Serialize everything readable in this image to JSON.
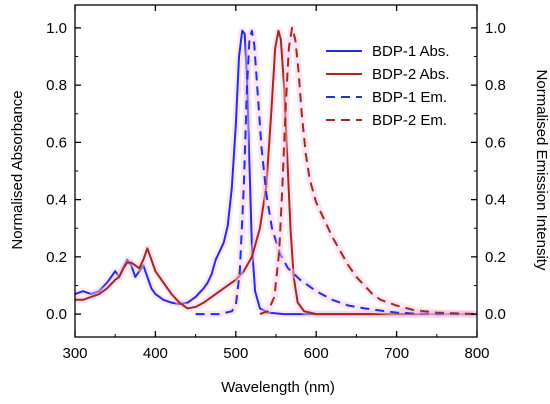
{
  "chart_data": {
    "type": "line",
    "xlabel": "Wavelength (nm)",
    "ylabel": "Normalised Absorbance",
    "y2label": "Normalised Emission Intensity",
    "xlim": [
      300,
      800
    ],
    "ylim": [
      -0.08,
      1.08
    ],
    "x_ticks": [
      300,
      400,
      500,
      600,
      700,
      800
    ],
    "x_tick_labels": [
      "300",
      "400",
      "500",
      "600",
      "700",
      "800"
    ],
    "y_ticks": [
      0.0,
      0.2,
      0.4,
      0.6,
      0.8,
      1.0
    ],
    "y_tick_labels": [
      "0.0",
      "0.2",
      "0.4",
      "0.6",
      "0.8",
      "1.0"
    ],
    "y2_ticks": [
      0.0,
      0.2,
      0.4,
      0.6,
      0.8,
      1.0
    ],
    "y2_tick_labels": [
      "0.0",
      "0.2",
      "0.4",
      "0.6",
      "0.8",
      "1.0"
    ],
    "legend_position": "top-right",
    "grid": false,
    "series": [
      {
        "name": "BDP-1 Abs.",
        "color": "#2230d8",
        "dash": "solid",
        "axis": "left",
        "points": [
          [
            300,
            0.07
          ],
          [
            310,
            0.08
          ],
          [
            320,
            0.07
          ],
          [
            330,
            0.08
          ],
          [
            340,
            0.11
          ],
          [
            350,
            0.15
          ],
          [
            355,
            0.13
          ],
          [
            360,
            0.16
          ],
          [
            365,
            0.19
          ],
          [
            370,
            0.17
          ],
          [
            375,
            0.13
          ],
          [
            380,
            0.15
          ],
          [
            385,
            0.17
          ],
          [
            390,
            0.13
          ],
          [
            395,
            0.09
          ],
          [
            400,
            0.07
          ],
          [
            410,
            0.05
          ],
          [
            420,
            0.04
          ],
          [
            430,
            0.035
          ],
          [
            440,
            0.04
          ],
          [
            450,
            0.06
          ],
          [
            460,
            0.09
          ],
          [
            465,
            0.11
          ],
          [
            470,
            0.14
          ],
          [
            475,
            0.19
          ],
          [
            480,
            0.22
          ],
          [
            485,
            0.25
          ],
          [
            490,
            0.31
          ],
          [
            495,
            0.44
          ],
          [
            500,
            0.66
          ],
          [
            504,
            0.9
          ],
          [
            508,
            0.99
          ],
          [
            511,
            0.98
          ],
          [
            514,
            0.82
          ],
          [
            517,
            0.52
          ],
          [
            520,
            0.24
          ],
          [
            524,
            0.08
          ],
          [
            530,
            0.02
          ],
          [
            540,
            0.005
          ],
          [
            560,
            0.0
          ],
          [
            600,
            0.0
          ],
          [
            700,
            0.0
          ],
          [
            800,
            0.0
          ]
        ]
      },
      {
        "name": "BDP-2 Abs.",
        "color": "#a12a1c",
        "dash": "solid",
        "axis": "left",
        "points": [
          [
            300,
            0.05
          ],
          [
            310,
            0.05
          ],
          [
            320,
            0.06
          ],
          [
            330,
            0.07
          ],
          [
            340,
            0.09
          ],
          [
            350,
            0.12
          ],
          [
            355,
            0.13
          ],
          [
            360,
            0.16
          ],
          [
            365,
            0.18
          ],
          [
            370,
            0.18
          ],
          [
            375,
            0.17
          ],
          [
            380,
            0.16
          ],
          [
            385,
            0.19
          ],
          [
            390,
            0.23
          ],
          [
            395,
            0.19
          ],
          [
            400,
            0.15
          ],
          [
            410,
            0.11
          ],
          [
            420,
            0.07
          ],
          [
            430,
            0.04
          ],
          [
            440,
            0.02
          ],
          [
            450,
            0.025
          ],
          [
            460,
            0.04
          ],
          [
            470,
            0.06
          ],
          [
            480,
            0.08
          ],
          [
            490,
            0.1
          ],
          [
            500,
            0.12
          ],
          [
            510,
            0.15
          ],
          [
            520,
            0.2
          ],
          [
            530,
            0.3
          ],
          [
            538,
            0.45
          ],
          [
            544,
            0.7
          ],
          [
            549,
            0.93
          ],
          [
            553,
            0.99
          ],
          [
            556,
            0.96
          ],
          [
            560,
            0.8
          ],
          [
            564,
            0.55
          ],
          [
            568,
            0.3
          ],
          [
            572,
            0.13
          ],
          [
            577,
            0.04
          ],
          [
            585,
            0.01
          ],
          [
            600,
            0.0
          ],
          [
            700,
            0.0
          ],
          [
            800,
            0.0
          ]
        ]
      },
      {
        "name": "BDP-1 Em.",
        "color": "#2230d8",
        "dash": "dashed",
        "axis": "right",
        "points": [
          [
            450,
            0.0
          ],
          [
            480,
            0.0
          ],
          [
            495,
            0.01
          ],
          [
            500,
            0.03
          ],
          [
            505,
            0.15
          ],
          [
            510,
            0.45
          ],
          [
            514,
            0.8
          ],
          [
            517,
            0.96
          ],
          [
            520,
            0.99
          ],
          [
            523,
            0.94
          ],
          [
            527,
            0.78
          ],
          [
            532,
            0.58
          ],
          [
            538,
            0.42
          ],
          [
            545,
            0.3
          ],
          [
            555,
            0.21
          ],
          [
            565,
            0.16
          ],
          [
            580,
            0.12
          ],
          [
            600,
            0.08
          ],
          [
            620,
            0.05
          ],
          [
            640,
            0.03
          ],
          [
            660,
            0.02
          ],
          [
            700,
            0.005
          ],
          [
            750,
            0.0
          ],
          [
            800,
            0.0
          ]
        ]
      },
      {
        "name": "BDP-2 Em.",
        "color": "#a12a1c",
        "dash": "dashed",
        "axis": "right",
        "points": [
          [
            530,
            0.0
          ],
          [
            540,
            0.01
          ],
          [
            548,
            0.06
          ],
          [
            554,
            0.22
          ],
          [
            558,
            0.45
          ],
          [
            562,
            0.72
          ],
          [
            566,
            0.93
          ],
          [
            570,
            1.0
          ],
          [
            574,
            0.96
          ],
          [
            578,
            0.85
          ],
          [
            582,
            0.7
          ],
          [
            587,
            0.56
          ],
          [
            592,
            0.47
          ],
          [
            600,
            0.39
          ],
          [
            610,
            0.33
          ],
          [
            620,
            0.27
          ],
          [
            630,
            0.22
          ],
          [
            640,
            0.17
          ],
          [
            650,
            0.13
          ],
          [
            660,
            0.1
          ],
          [
            670,
            0.07
          ],
          [
            680,
            0.05
          ],
          [
            700,
            0.03
          ],
          [
            720,
            0.015
          ],
          [
            750,
            0.005
          ],
          [
            780,
            0.002
          ],
          [
            800,
            0.0
          ]
        ]
      }
    ]
  }
}
